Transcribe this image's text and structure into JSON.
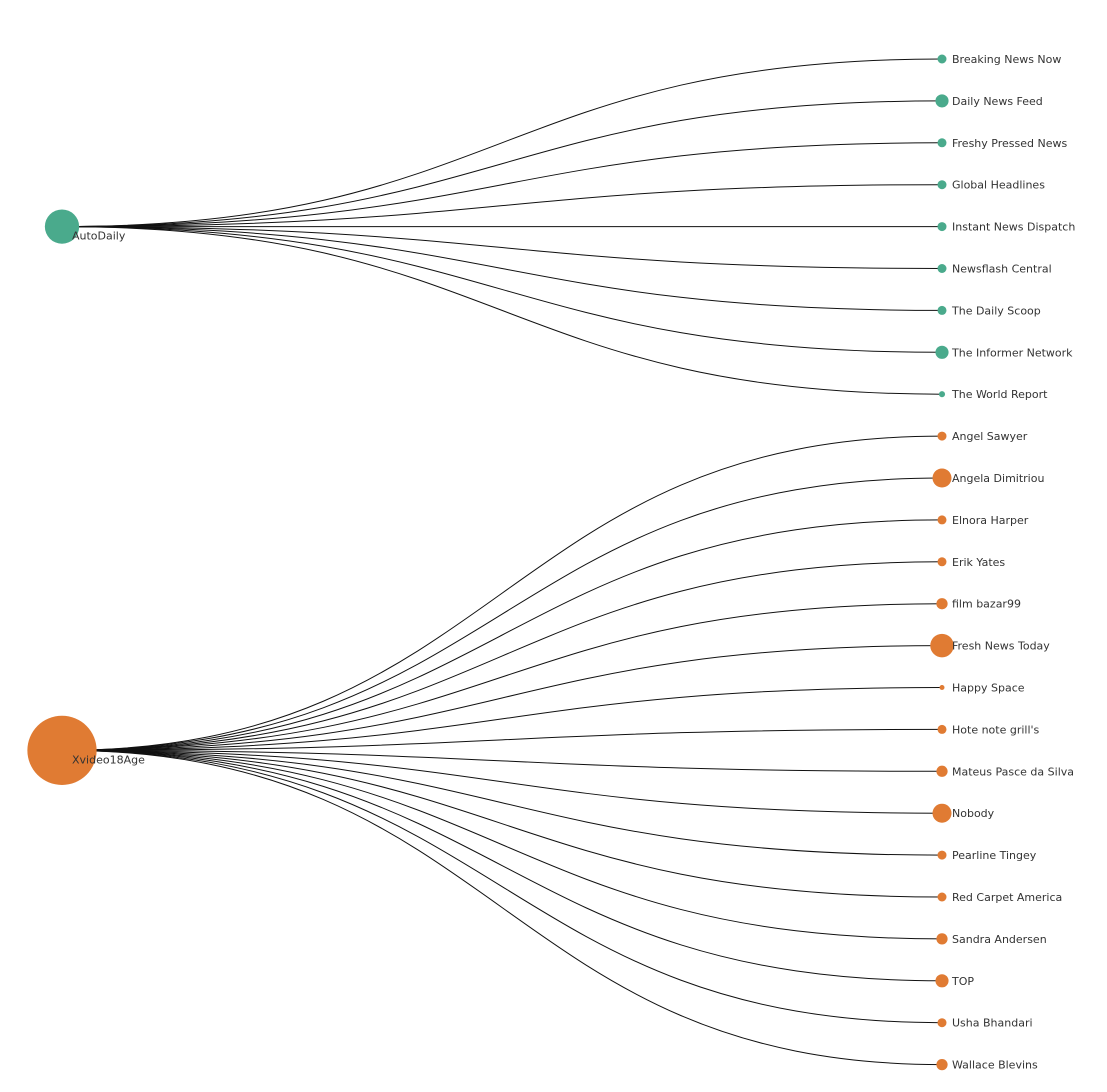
{
  "colors": {
    "background": "#ffffff",
    "link": "#111111",
    "label": "#333333",
    "group_teal": "#4aaa8c",
    "group_orange": "#e07b33"
  },
  "diagram": {
    "type": "tree-dendrogram",
    "groups": [
      {
        "source": "AutoDaily",
        "color": "#4aaa8c",
        "source_size": 2,
        "children": [
          {
            "label": "Breaking News Now",
            "size": 1
          },
          {
            "label": "Daily News Feed",
            "size": 2
          },
          {
            "label": "Freshy Pressed News",
            "size": 1
          },
          {
            "label": "Global Headlines",
            "size": 1
          },
          {
            "label": "Instant News Dispatch",
            "size": 1
          },
          {
            "label": "Newsflash Central",
            "size": 1
          },
          {
            "label": "The Daily Scoop",
            "size": 1
          },
          {
            "label": "The Informer Network",
            "size": 2
          },
          {
            "label": "The World Report",
            "size": 0.5
          }
        ]
      },
      {
        "source": "Xvideo18Age",
        "color": "#e07b33",
        "source_size": 10,
        "children": [
          {
            "label": "Angel Sawyer",
            "size": 1
          },
          {
            "label": "Angela Dimitriou",
            "size": 4
          },
          {
            "label": "Elnora Harper",
            "size": 1
          },
          {
            "label": "Erik Yates",
            "size": 1
          },
          {
            "label": "film bazar99",
            "size": 1.5
          },
          {
            "label": "Fresh News Today",
            "size": 6
          },
          {
            "label": "Happy Space",
            "size": 0.3
          },
          {
            "label": "Hote note grill's",
            "size": 1
          },
          {
            "label": "Mateus Pasce da Silva",
            "size": 1.5
          },
          {
            "label": "Nobody",
            "size": 4
          },
          {
            "label": "Pearline Tingey",
            "size": 1
          },
          {
            "label": "Red Carpet America",
            "size": 1
          },
          {
            "label": "Sandra Andersen",
            "size": 1.5
          },
          {
            "label": "TOP",
            "size": 2
          },
          {
            "label": "Usha Bhandari",
            "size": 1
          },
          {
            "label": "Wallace Blevins",
            "size": 1.5
          }
        ]
      }
    ]
  }
}
